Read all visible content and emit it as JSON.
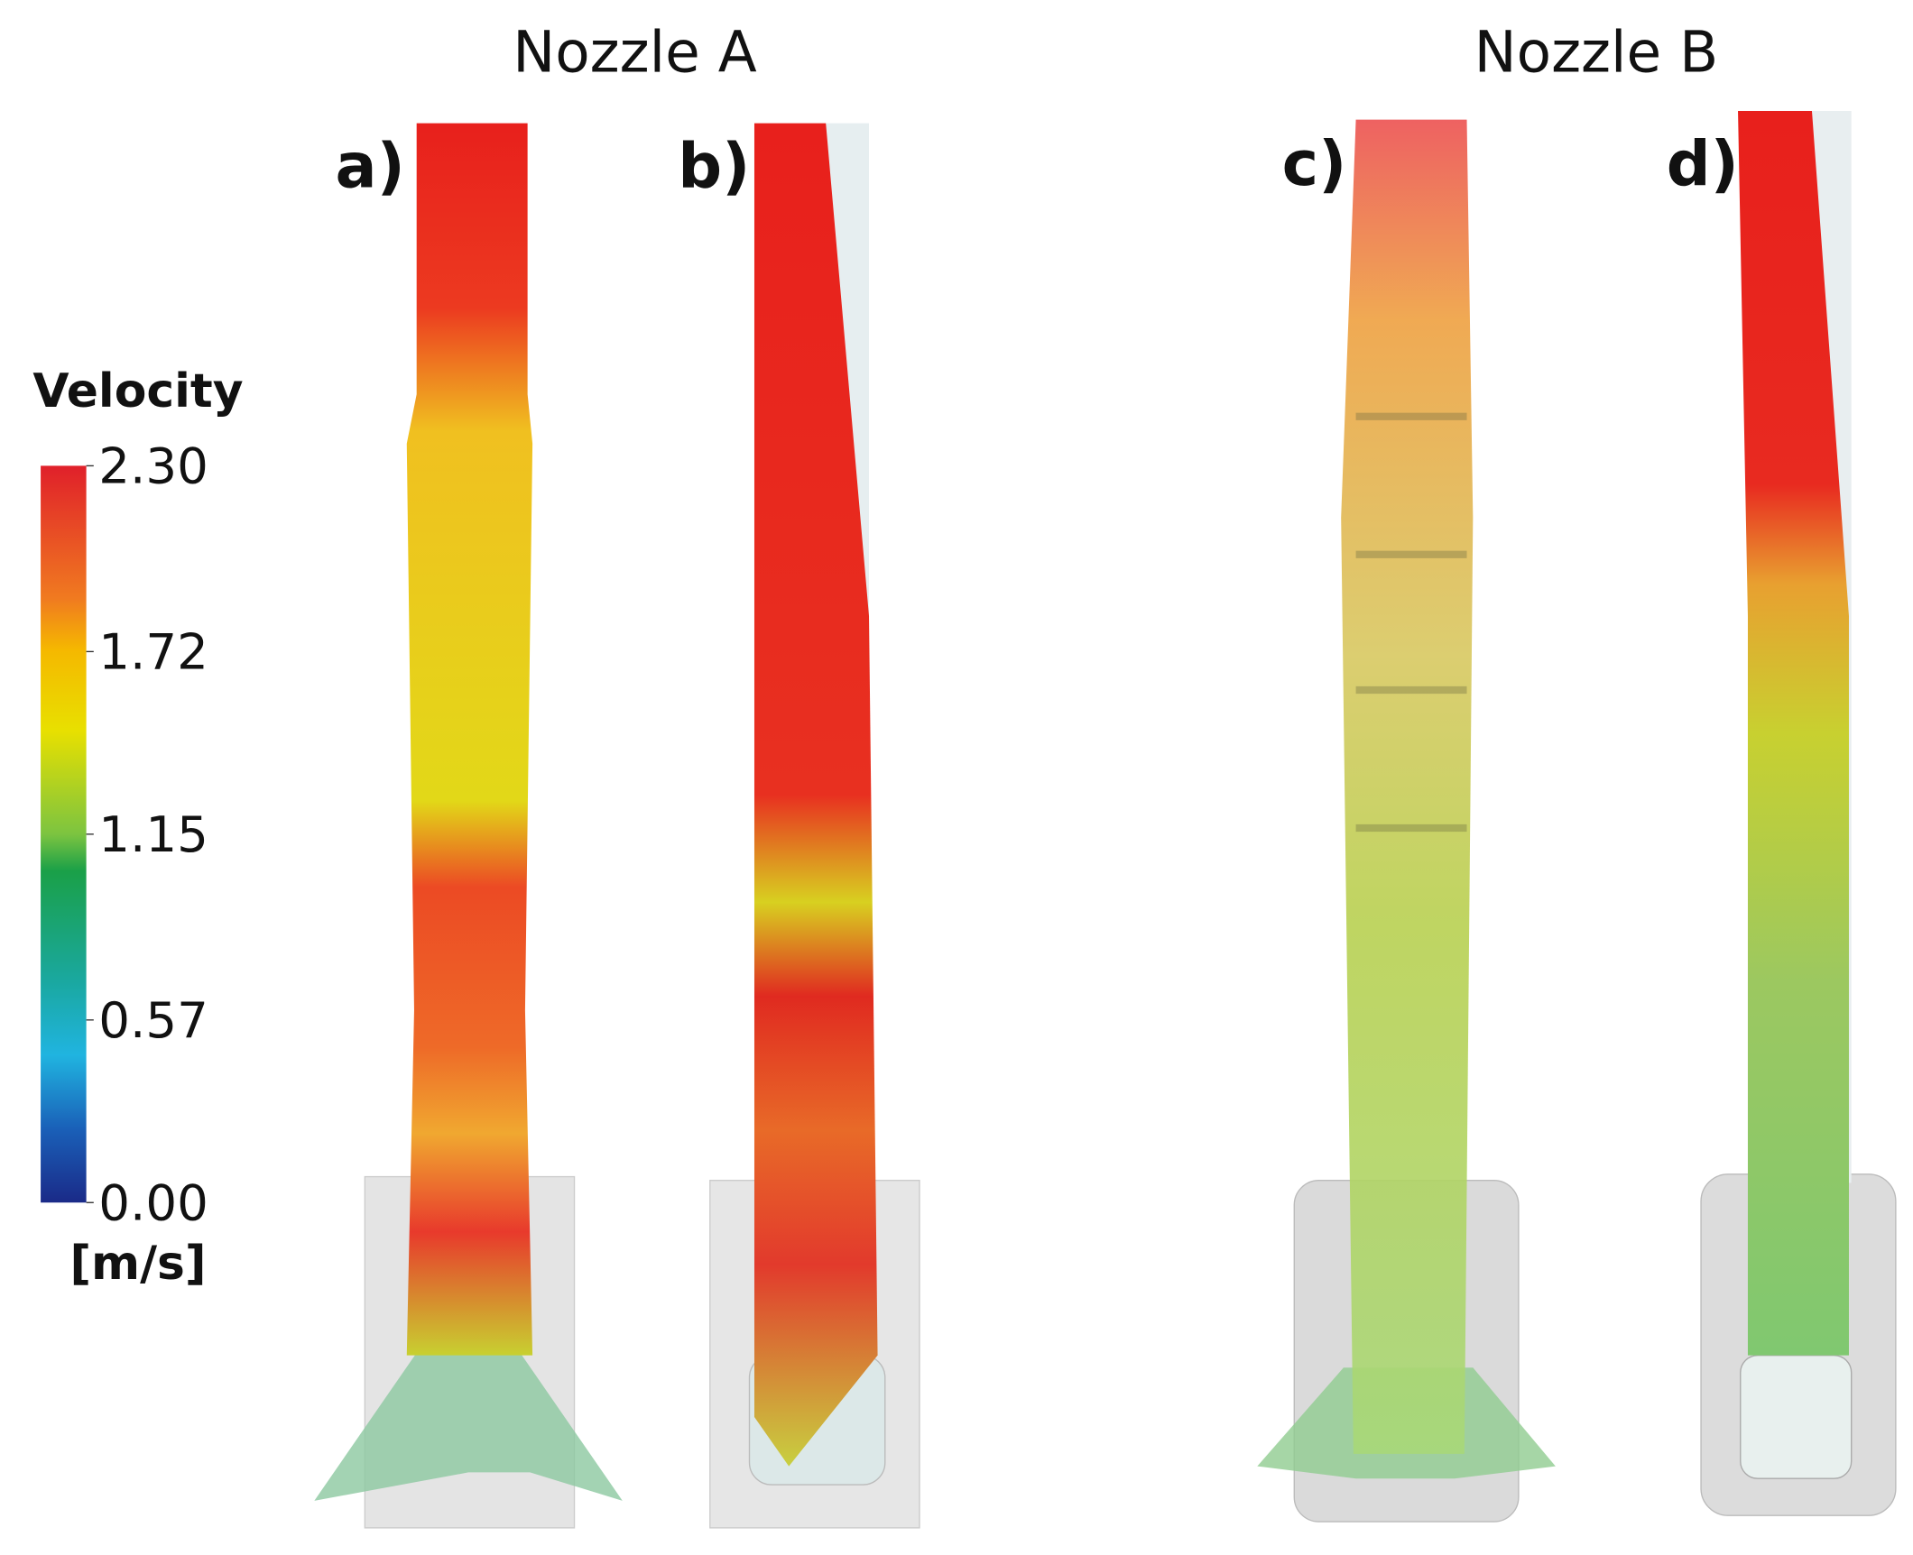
{
  "titles": [
    "Nozzle A",
    "Nozzle B"
  ],
  "panels": [
    "a)",
    "b)",
    "c)",
    "d)"
  ],
  "colorbar": {
    "title": "Velocity",
    "unit": "[m/s]",
    "range": [
      0,
      2.3
    ],
    "ticks": [
      {
        "value": 2.3,
        "label": "2.30"
      },
      1.72,
      1.15,
      0.57,
      {
        "value": 0,
        "label": "0.00"
      }
    ]
  }
}
